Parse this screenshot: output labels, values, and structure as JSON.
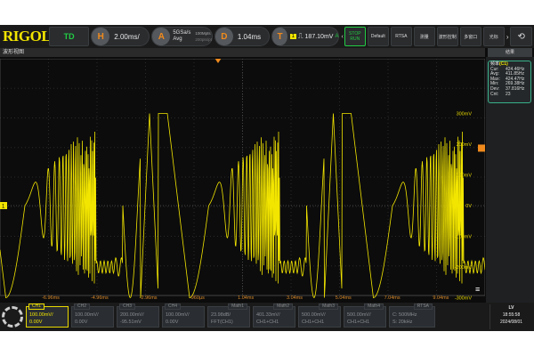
{
  "top": {
    "logo": "RIGOL",
    "mode": "TD",
    "h_label": "H",
    "timebase": "2.00ms/",
    "a_label": "A",
    "sample_rate": "5GSa/s",
    "acq_mode": "Avg",
    "mem_depth": "100Mpts",
    "pts_rate": "200pts/pt",
    "d_label": "D",
    "delay": "1.04ms",
    "t_label": "T",
    "trig_source": "1",
    "trig_level": "187.10mV",
    "trig_arrow": "A",
    "buttons": [
      {
        "label": "STOP\nRUN",
        "name": "run-stop"
      },
      {
        "label": "Default",
        "name": "default"
      },
      {
        "label": "RTSA",
        "name": "rtsa"
      },
      {
        "label": "测量",
        "name": "measure"
      },
      {
        "label": "波形控制",
        "name": "waveform-control"
      },
      {
        "label": "多窗口",
        "name": "multi-window"
      },
      {
        "label": "光标",
        "name": "cursor"
      }
    ]
  },
  "view_title": "波形视图",
  "results_label": "结果",
  "measurement": {
    "title": "频率",
    "source": "(C1)",
    "rows": [
      [
        "Cur:",
        "424.46Hz"
      ],
      [
        "Avg:",
        "411.85Hz"
      ],
      [
        "Max:",
        "424.47Hz"
      ],
      [
        "Min:",
        "269.38Hz"
      ],
      [
        "Dev:",
        "37.816Hz"
      ],
      [
        "Cnt:",
        "23"
      ]
    ]
  },
  "y_labels": [
    "300mV",
    "200mV",
    "100mV",
    "0V",
    "-100mV",
    "-200mV",
    "-300mV"
  ],
  "x_labels": [
    "-6.96ms",
    "-4.96ms",
    "-2.96ms",
    "-960µs",
    "1.04ms",
    "3.04ms",
    "5.04ms",
    "7.04ms",
    "9.04ms"
  ],
  "ch1_marker": "1",
  "channels": [
    {
      "tag": "CH1",
      "scale": "100.00mV/",
      "offset": "0.00V",
      "active": true
    },
    {
      "tag": "CH2",
      "scale": "100.00mV/",
      "offset": "0.00V"
    },
    {
      "tag": "CH3",
      "scale": "200.00mV/",
      "offset": "-95.51mV"
    },
    {
      "tag": "CH4",
      "scale": "100.00mV/",
      "offset": "0.00V"
    },
    {
      "tag": "Math1",
      "scale": "23.98dB/",
      "offset": "FFT(CH1)",
      "math": true
    },
    {
      "tag": "Math2",
      "scale": "401.33mV/",
      "offset": "CH1+CH1",
      "math": true
    },
    {
      "tag": "Math3",
      "scale": "500.00mV/",
      "offset": "CH1+CH1",
      "math": true
    },
    {
      "tag": "Math4",
      "scale": "500.00mV/",
      "offset": "CH1+CH1",
      "math": true
    },
    {
      "tag": "RTSA",
      "scale": "C: 500MHz",
      "offset": "S: 20kHz",
      "math": true
    }
  ],
  "status": {
    "lv": "LV",
    "time": "18:55:58",
    "date": "2024/08/01"
  },
  "colors": {
    "ch1": "#f2e500",
    "accent": "#f08a1c",
    "measure_border": "#3ab08a"
  }
}
